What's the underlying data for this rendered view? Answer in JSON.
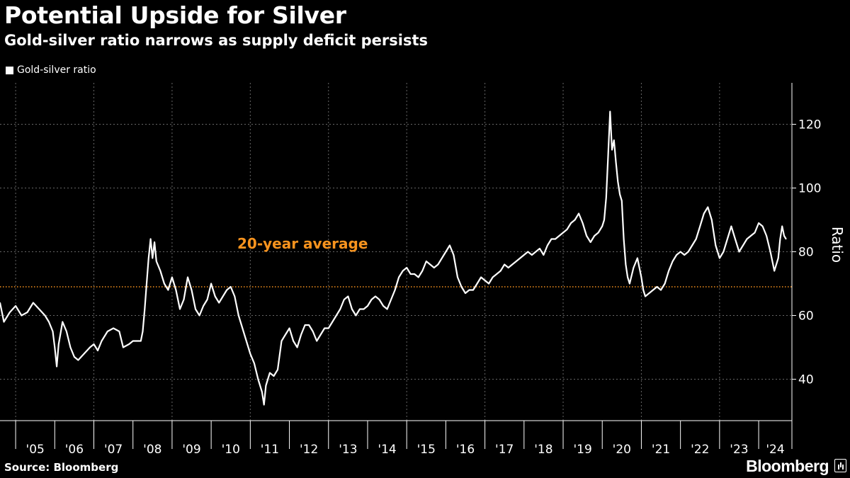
{
  "header": {
    "title": "Potential Upside for Silver",
    "subtitle": "Gold-silver ratio narrows as supply deficit persists"
  },
  "legend": {
    "label": "Gold-silver ratio"
  },
  "footer": {
    "source": "Source: Bloomberg",
    "brand": "Bloomberg"
  },
  "colors": {
    "background": "#000000",
    "line": "#ffffff",
    "average": "#f7931e",
    "grid": "#666666"
  },
  "chart_data": {
    "type": "line",
    "title": "Potential Upside for Silver",
    "subtitle": "Gold-silver ratio narrows as supply deficit persists",
    "xlabel": "",
    "ylabel": "Ratio",
    "xlim": [
      2004.6,
      2024.85
    ],
    "ylim": [
      27,
      133
    ],
    "grid": true,
    "legend_position": "top-left",
    "x_tick_labels": [
      {
        "label": "'05",
        "year": 2005
      },
      {
        "label": "'06",
        "year": 2006
      },
      {
        "label": "'07",
        "year": 2007
      },
      {
        "label": "'08",
        "year": 2008
      },
      {
        "label": "'09",
        "year": 2009
      },
      {
        "label": "'10",
        "year": 2010
      },
      {
        "label": "'11",
        "year": 2011
      },
      {
        "label": "'12",
        "year": 2012
      },
      {
        "label": "'13",
        "year": 2013
      },
      {
        "label": "'14",
        "year": 2014
      },
      {
        "label": "'15",
        "year": 2015
      },
      {
        "label": "'16",
        "year": 2016
      },
      {
        "label": "'17",
        "year": 2017
      },
      {
        "label": "'18",
        "year": 2018
      },
      {
        "label": "'19",
        "year": 2019
      },
      {
        "label": "'20",
        "year": 2020
      },
      {
        "label": "'21",
        "year": 2021
      },
      {
        "label": "'22",
        "year": 2022
      },
      {
        "label": "'23",
        "year": 2023
      },
      {
        "label": "'24",
        "year": 2024
      }
    ],
    "y_ticks": [
      40,
      60,
      80,
      100,
      120
    ],
    "reference_line": {
      "label": "20-year average",
      "value": 69
    },
    "series": [
      {
        "name": "Gold-silver ratio",
        "points": [
          [
            2004.6,
            64
          ],
          [
            2004.7,
            58
          ],
          [
            2004.85,
            61
          ],
          [
            2005.0,
            63
          ],
          [
            2005.15,
            60
          ],
          [
            2005.3,
            61
          ],
          [
            2005.45,
            64
          ],
          [
            2005.6,
            62
          ],
          [
            2005.75,
            60
          ],
          [
            2005.85,
            58
          ],
          [
            2005.95,
            55
          ],
          [
            2006.0,
            50
          ],
          [
            2006.05,
            44
          ],
          [
            2006.1,
            51
          ],
          [
            2006.2,
            58
          ],
          [
            2006.3,
            55
          ],
          [
            2006.4,
            50
          ],
          [
            2006.5,
            47
          ],
          [
            2006.6,
            46
          ],
          [
            2006.75,
            48
          ],
          [
            2006.9,
            50
          ],
          [
            2007.0,
            51
          ],
          [
            2007.1,
            49
          ],
          [
            2007.2,
            52
          ],
          [
            2007.35,
            55
          ],
          [
            2007.5,
            56
          ],
          [
            2007.65,
            55
          ],
          [
            2007.75,
            50
          ],
          [
            2007.9,
            51
          ],
          [
            2008.0,
            52
          ],
          [
            2008.1,
            52
          ],
          [
            2008.2,
            52
          ],
          [
            2008.25,
            55
          ],
          [
            2008.3,
            62
          ],
          [
            2008.35,
            70
          ],
          [
            2008.4,
            78
          ],
          [
            2008.45,
            84
          ],
          [
            2008.5,
            78
          ],
          [
            2008.55,
            83
          ],
          [
            2008.6,
            77
          ],
          [
            2008.7,
            74
          ],
          [
            2008.8,
            70
          ],
          [
            2008.9,
            68
          ],
          [
            2009.0,
            72
          ],
          [
            2009.1,
            68
          ],
          [
            2009.2,
            62
          ],
          [
            2009.3,
            65
          ],
          [
            2009.4,
            72
          ],
          [
            2009.5,
            68
          ],
          [
            2009.6,
            62
          ],
          [
            2009.7,
            60
          ],
          [
            2009.8,
            63
          ],
          [
            2009.9,
            65
          ],
          [
            2010.0,
            70
          ],
          [
            2010.1,
            66
          ],
          [
            2010.2,
            64
          ],
          [
            2010.3,
            66
          ],
          [
            2010.4,
            68
          ],
          [
            2010.5,
            69
          ],
          [
            2010.6,
            66
          ],
          [
            2010.7,
            60
          ],
          [
            2010.8,
            56
          ],
          [
            2010.9,
            52
          ],
          [
            2011.0,
            48
          ],
          [
            2011.1,
            45
          ],
          [
            2011.2,
            40
          ],
          [
            2011.3,
            36
          ],
          [
            2011.35,
            32
          ],
          [
            2011.4,
            38
          ],
          [
            2011.5,
            42
          ],
          [
            2011.6,
            41
          ],
          [
            2011.7,
            43
          ],
          [
            2011.8,
            52
          ],
          [
            2011.9,
            54
          ],
          [
            2012.0,
            56
          ],
          [
            2012.1,
            52
          ],
          [
            2012.2,
            50
          ],
          [
            2012.3,
            54
          ],
          [
            2012.4,
            57
          ],
          [
            2012.5,
            57
          ],
          [
            2012.6,
            55
          ],
          [
            2012.7,
            52
          ],
          [
            2012.8,
            54
          ],
          [
            2012.9,
            56
          ],
          [
            2013.0,
            56
          ],
          [
            2013.1,
            58
          ],
          [
            2013.2,
            60
          ],
          [
            2013.3,
            62
          ],
          [
            2013.4,
            65
          ],
          [
            2013.5,
            66
          ],
          [
            2013.6,
            62
          ],
          [
            2013.7,
            60
          ],
          [
            2013.8,
            62
          ],
          [
            2013.9,
            62
          ],
          [
            2014.0,
            63
          ],
          [
            2014.1,
            65
          ],
          [
            2014.2,
            66
          ],
          [
            2014.3,
            65
          ],
          [
            2014.4,
            63
          ],
          [
            2014.5,
            62
          ],
          [
            2014.6,
            65
          ],
          [
            2014.7,
            68
          ],
          [
            2014.8,
            72
          ],
          [
            2014.9,
            74
          ],
          [
            2015.0,
            75
          ],
          [
            2015.1,
            73
          ],
          [
            2015.2,
            73
          ],
          [
            2015.3,
            72
          ],
          [
            2015.4,
            74
          ],
          [
            2015.5,
            77
          ],
          [
            2015.6,
            76
          ],
          [
            2015.7,
            75
          ],
          [
            2015.8,
            76
          ],
          [
            2015.9,
            78
          ],
          [
            2016.0,
            80
          ],
          [
            2016.1,
            82
          ],
          [
            2016.2,
            79
          ],
          [
            2016.3,
            72
          ],
          [
            2016.4,
            69
          ],
          [
            2016.5,
            67
          ],
          [
            2016.6,
            68
          ],
          [
            2016.7,
            68
          ],
          [
            2016.8,
            70
          ],
          [
            2016.9,
            72
          ],
          [
            2017.0,
            71
          ],
          [
            2017.1,
            70
          ],
          [
            2017.2,
            72
          ],
          [
            2017.3,
            73
          ],
          [
            2017.4,
            74
          ],
          [
            2017.5,
            76
          ],
          [
            2017.6,
            75
          ],
          [
            2017.7,
            76
          ],
          [
            2017.8,
            77
          ],
          [
            2017.9,
            78
          ],
          [
            2018.0,
            79
          ],
          [
            2018.1,
            80
          ],
          [
            2018.2,
            79
          ],
          [
            2018.3,
            80
          ],
          [
            2018.4,
            81
          ],
          [
            2018.5,
            79
          ],
          [
            2018.6,
            82
          ],
          [
            2018.7,
            84
          ],
          [
            2018.8,
            84
          ],
          [
            2018.9,
            85
          ],
          [
            2019.0,
            86
          ],
          [
            2019.1,
            87
          ],
          [
            2019.2,
            89
          ],
          [
            2019.3,
            90
          ],
          [
            2019.4,
            92
          ],
          [
            2019.5,
            89
          ],
          [
            2019.6,
            85
          ],
          [
            2019.7,
            83
          ],
          [
            2019.8,
            85
          ],
          [
            2019.9,
            86
          ],
          [
            2020.0,
            88
          ],
          [
            2020.05,
            90
          ],
          [
            2020.1,
            97
          ],
          [
            2020.15,
            110
          ],
          [
            2020.2,
            124
          ],
          [
            2020.25,
            112
          ],
          [
            2020.3,
            115
          ],
          [
            2020.35,
            108
          ],
          [
            2020.4,
            102
          ],
          [
            2020.45,
            98
          ],
          [
            2020.5,
            96
          ],
          [
            2020.55,
            84
          ],
          [
            2020.6,
            76
          ],
          [
            2020.65,
            72
          ],
          [
            2020.7,
            70
          ],
          [
            2020.8,
            75
          ],
          [
            2020.9,
            78
          ],
          [
            2021.0,
            72
          ],
          [
            2021.05,
            68
          ],
          [
            2021.1,
            66
          ],
          [
            2021.2,
            67
          ],
          [
            2021.3,
            68
          ],
          [
            2021.4,
            69
          ],
          [
            2021.5,
            68
          ],
          [
            2021.6,
            70
          ],
          [
            2021.7,
            74
          ],
          [
            2021.8,
            77
          ],
          [
            2021.9,
            79
          ],
          [
            2022.0,
            80
          ],
          [
            2022.1,
            79
          ],
          [
            2022.2,
            80
          ],
          [
            2022.3,
            82
          ],
          [
            2022.4,
            84
          ],
          [
            2022.5,
            88
          ],
          [
            2022.6,
            92
          ],
          [
            2022.7,
            94
          ],
          [
            2022.8,
            90
          ],
          [
            2022.9,
            82
          ],
          [
            2023.0,
            78
          ],
          [
            2023.1,
            80
          ],
          [
            2023.2,
            84
          ],
          [
            2023.3,
            88
          ],
          [
            2023.4,
            84
          ],
          [
            2023.5,
            80
          ],
          [
            2023.6,
            82
          ],
          [
            2023.7,
            84
          ],
          [
            2023.8,
            85
          ],
          [
            2023.9,
            86
          ],
          [
            2024.0,
            89
          ],
          [
            2024.1,
            88
          ],
          [
            2024.2,
            85
          ],
          [
            2024.3,
            80
          ],
          [
            2024.4,
            74
          ],
          [
            2024.5,
            78
          ],
          [
            2024.55,
            84
          ],
          [
            2024.6,
            88
          ],
          [
            2024.65,
            85
          ],
          [
            2024.7,
            84
          ]
        ]
      }
    ]
  }
}
